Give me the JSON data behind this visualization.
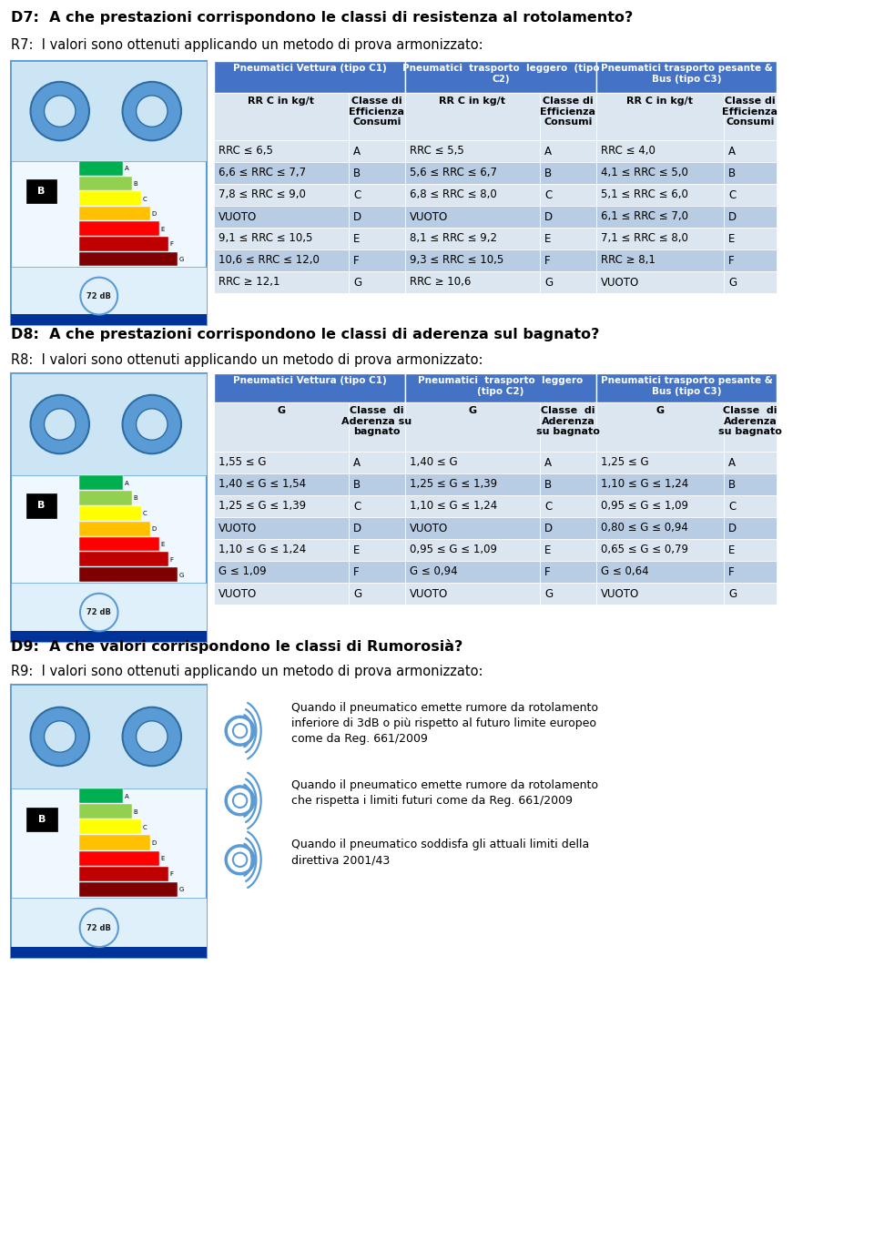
{
  "bg_color": "#ffffff",
  "header_bg": "#4472c4",
  "row_bg_light": "#dce6f1",
  "row_bg_dark": "#b8cce4",
  "header_text_color": "#ffffff",
  "cell_text_color": "#000000",
  "q7_title": "D7:  A che prestazioni corrispondono le classi di resistenza al rotolamento?",
  "q7_subtitle": "R7:  I valori sono ottenuti applicando un metodo di prova armonizzato:",
  "table1_header_labels": [
    "Pneumatici Vettura (tipo C1)",
    "Pneumatici  trasporto  leggero  (tipo\nC2)",
    "Pneumatici trasporto pesante &\nBus (tipo C3)"
  ],
  "table1_subheaders": [
    "RR C in kg/t",
    "Classe di\nEfficienza\nConsumi",
    "RR C in kg/t",
    "Classe di\nEfficienza\nConsumi",
    "RR C in kg/t",
    "Classe di\nEfficienza\nConsumi"
  ],
  "table1_rows": [
    [
      "RRC ≤ 6,5",
      "A",
      "RRC ≤ 5,5",
      "A",
      "RRC ≤ 4,0",
      "A"
    ],
    [
      "6,6 ≤ RRC ≤ 7,7",
      "B",
      "5,6 ≤ RRC ≤ 6,7",
      "B",
      "4,1 ≤ RRC ≤ 5,0",
      "B"
    ],
    [
      "7,8 ≤ RRC ≤ 9,0",
      "C",
      "6,8 ≤ RRC ≤ 8,0",
      "C",
      "5,1 ≤ RRC ≤ 6,0",
      "C"
    ],
    [
      "VUOTO",
      "D",
      "VUOTO",
      "D",
      "6,1 ≤ RRC ≤ 7,0",
      "D"
    ],
    [
      "9,1 ≤ RRC ≤ 10,5",
      "E",
      "8,1 ≤ RRC ≤ 9,2",
      "E",
      "7,1 ≤ RRC ≤ 8,0",
      "E"
    ],
    [
      "10,6 ≤ RRC ≤ 12,0",
      "F",
      "9,3 ≤ RRC ≤ 10,5",
      "F",
      "RRC ≥ 8,1",
      "F"
    ],
    [
      "RRC ≥ 12,1",
      "G",
      "RRC ≥ 10,6",
      "G",
      "VUOTO",
      "G"
    ]
  ],
  "q8_title": "D8:  A che prestazioni corrispondono le classi di aderenza sul bagnato?",
  "q8_subtitle": "R8:  I valori sono ottenuti applicando un metodo di prova armonizzato:",
  "table2_header_labels": [
    "Pneumatici Vettura (tipo C1)",
    "Pneumatici  trasporto  leggero\n(tipo C2)",
    "Pneumatici trasporto pesante &\nBus (tipo C3)"
  ],
  "table2_subheaders": [
    "G",
    "Classe  di\nAderenza su\nbagnato",
    "G",
    "Classe  di\nAderenza\nsu bagnato",
    "G",
    "Classe  di\nAderenza\nsu bagnato"
  ],
  "table2_rows": [
    [
      "1,55 ≤ G",
      "A",
      "1,40 ≤ G",
      "A",
      "1,25 ≤ G",
      "A"
    ],
    [
      "1,40 ≤ G ≤ 1,54",
      "B",
      "1,25 ≤ G ≤ 1,39",
      "B",
      "1,10 ≤ G ≤ 1,24",
      "B"
    ],
    [
      "1,25 ≤ G ≤ 1,39",
      "C",
      "1,10 ≤ G ≤ 1,24",
      "C",
      "0,95 ≤ G ≤ 1,09",
      "C"
    ],
    [
      "VUOTO",
      "D",
      "VUOTO",
      "D",
      "0,80 ≤ G ≤ 0,94",
      "D"
    ],
    [
      "1,10 ≤ G ≤ 1,24",
      "E",
      "0,95 ≤ G ≤ 1,09",
      "E",
      "0,65 ≤ G ≤ 0,79",
      "E"
    ],
    [
      "G ≤ 1,09",
      "F",
      "G ≤ 0,94",
      "F",
      "G ≤ 0,64",
      "F"
    ],
    [
      "VUOTO",
      "G",
      "VUOTO",
      "G",
      "VUOTO",
      "G"
    ]
  ],
  "q9_title": "D9:  A che valori corrispondono le classi di Rumorosià?",
  "q9_subtitle": "R9:  I valori sono ottenuti applicando un metodo di prova armonizzato:",
  "noise_texts": [
    "Quando il pneumatico emette rumore da rotolamento\ninferiore di 3dB o più rispetto al futuro limite europeo\ncome da Reg. 661/2009",
    "Quando il pneumatico emette rumore da rotolamento\nche rispetta i limiti futuri come da Reg. 661/2009",
    "Quando il pneumatico soddisfa gli attuali limiti della\ndirettiva 2001/43"
  ]
}
